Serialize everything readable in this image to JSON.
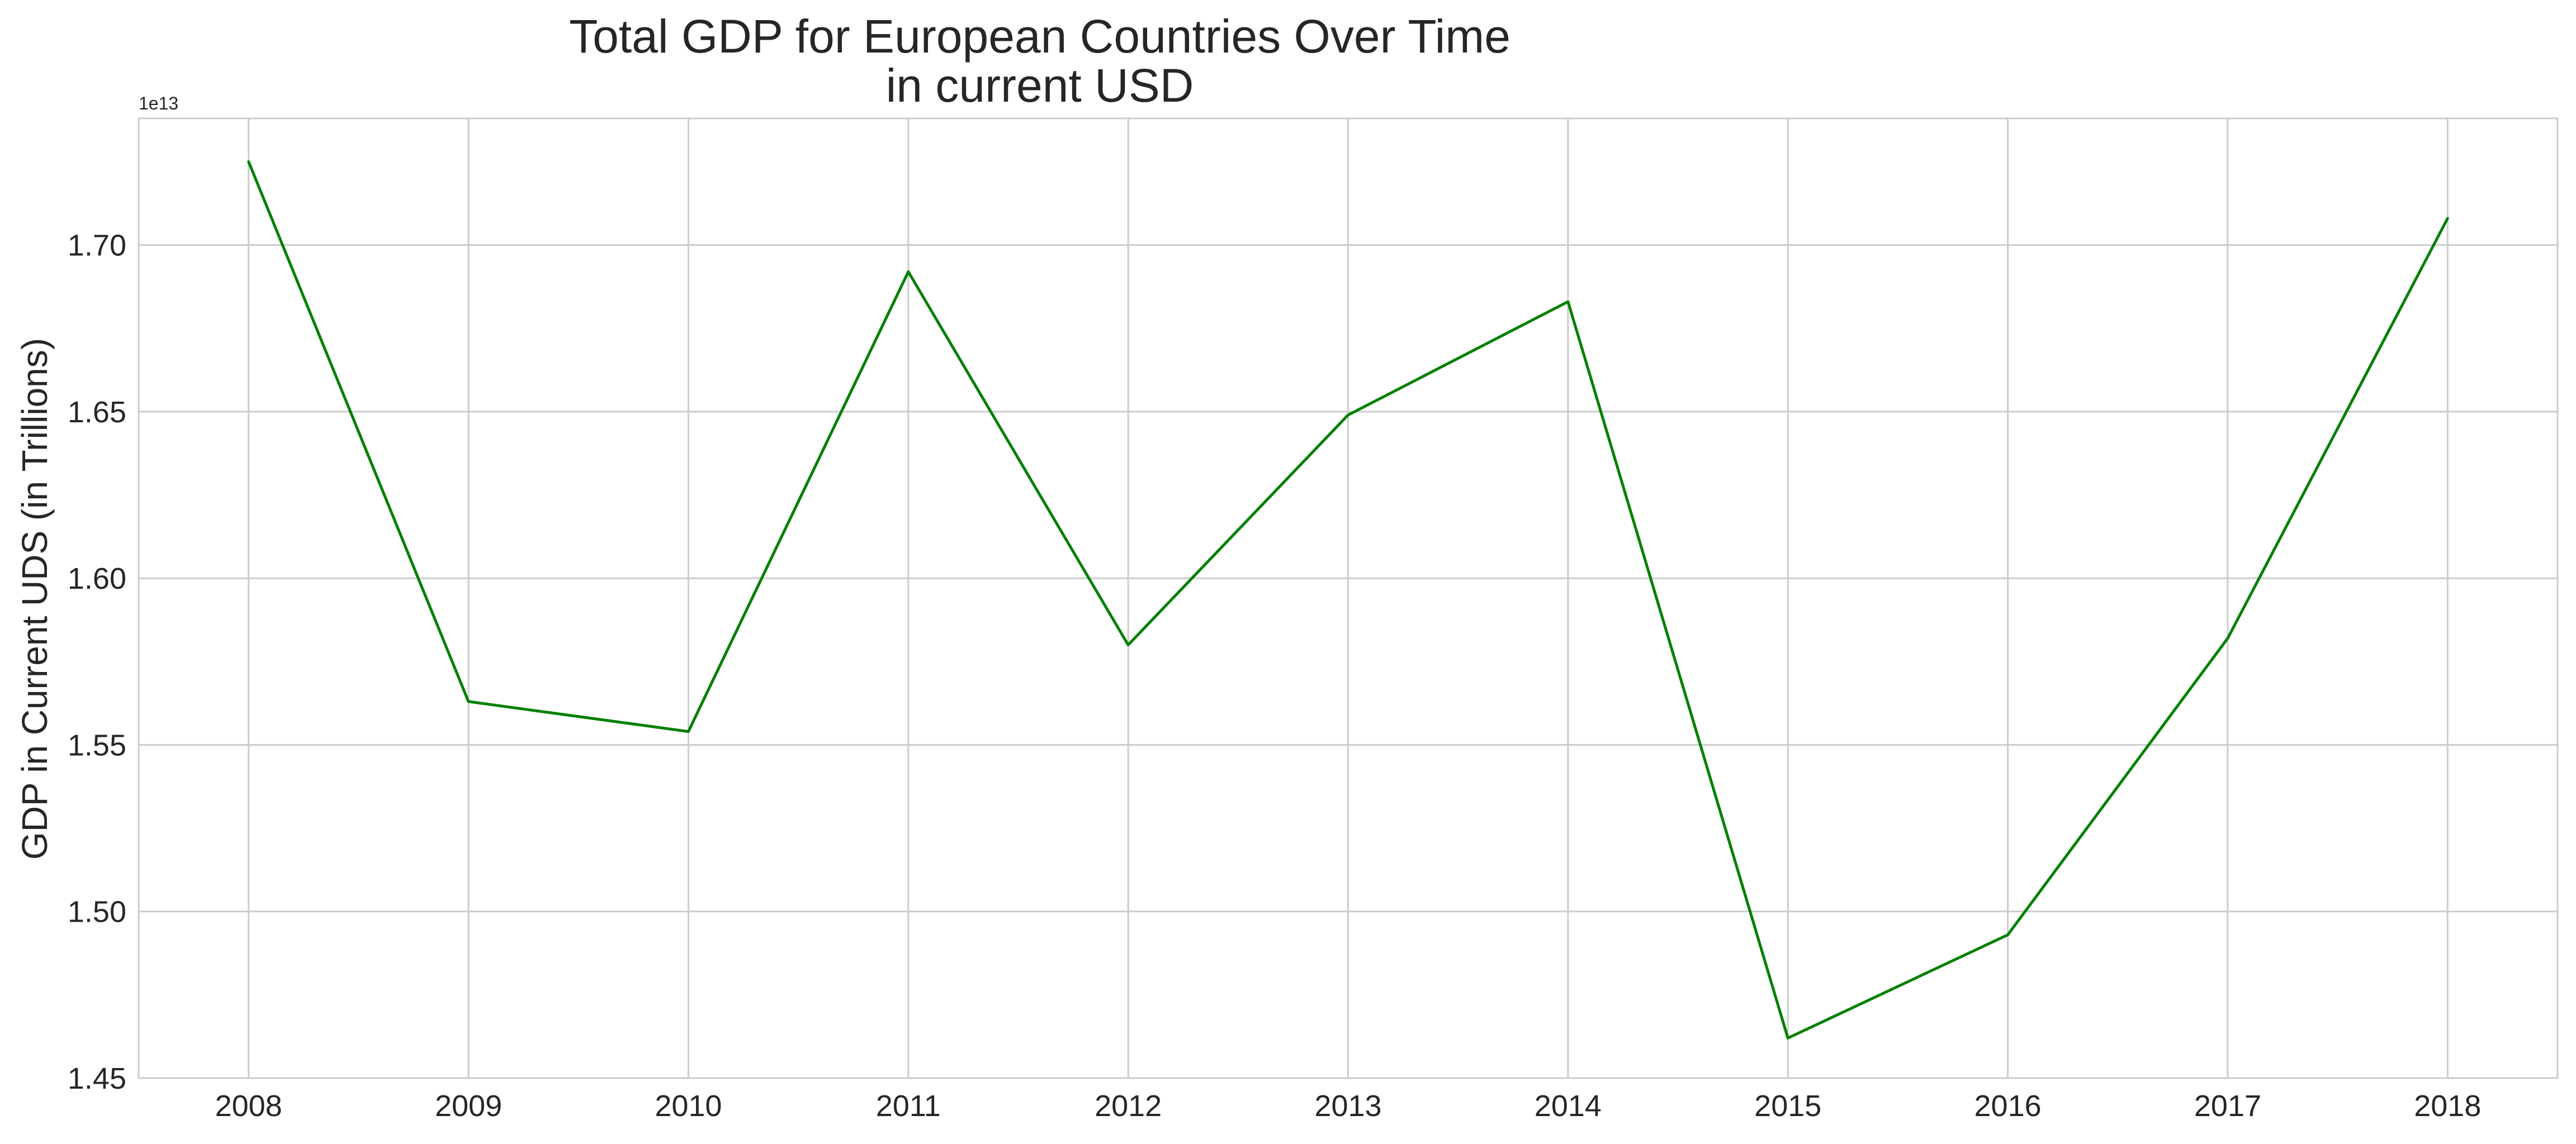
{
  "chart_data": {
    "type": "line",
    "title": [
      "Total GDP for European Countries Over Time",
      "in current USD"
    ],
    "xlabel": "",
    "ylabel": "GDP in Current UDS (in Trillions)",
    "y_offset_label": "1e13",
    "x": [
      2008,
      2009,
      2010,
      2011,
      2012,
      2013,
      2014,
      2015,
      2016,
      2017,
      2018
    ],
    "x_tick_labels": [
      "2008",
      "2009",
      "2010",
      "2011",
      "2012",
      "2013",
      "2014",
      "2015",
      "2016",
      "2017",
      "2018"
    ],
    "y_ticks": [
      1.45,
      1.5,
      1.55,
      1.6,
      1.65,
      1.7
    ],
    "y_tick_labels": [
      "1.45",
      "1.50",
      "1.55",
      "1.60",
      "1.65",
      "1.70"
    ],
    "ylim": [
      1.45,
      1.738
    ],
    "xlim": [
      2007.5,
      2018.5
    ],
    "grid": true,
    "legend": false,
    "series": [
      {
        "color": "#008000",
        "values": [
          1.725,
          1.563,
          1.554,
          1.692,
          1.58,
          1.649,
          1.683,
          1.462,
          1.493,
          1.582,
          1.708
        ]
      }
    ]
  }
}
